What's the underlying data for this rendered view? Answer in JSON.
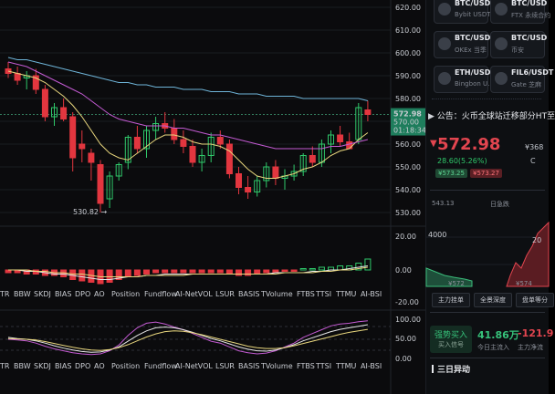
{
  "y_axis_prices": [
    "620.00",
    "610.00",
    "600.00",
    "590.00",
    "580.00",
    "570.00",
    "560.00",
    "550.00",
    "540.00",
    "530.00"
  ],
  "last_price_tag": "572.98",
  "second_price_tag": "570.00",
  "countdown": "01:18:34",
  "low_annotation": "530.82",
  "indicator_axis_1": [
    "20.00",
    "0.00",
    "-20.00"
  ],
  "indicator_axis_2": [
    "100.00",
    "50.00",
    "0.00"
  ],
  "indicator_tabs": [
    "TR",
    "BBW",
    "SKDJ",
    "BIAS",
    "DPO",
    "AO",
    "Position",
    "Fundflow",
    "AI-NetVOL",
    "LSUR",
    "BASIS",
    "TVolume",
    "FTBS",
    "TTSI",
    "TTMU",
    "AI-BSI"
  ],
  "pairs": [
    {
      "symbol": "BTC/USDT",
      "exchange": "Bybit USDT"
    },
    {
      "symbol": "BTC/USD",
      "exchange": "FTX 永续合约"
    },
    {
      "symbol": "BTC/USD",
      "exchange": "OKEx 当季"
    },
    {
      "symbol": "BTC/USD",
      "exchange": "币安"
    },
    {
      "symbol": "ETH/USDT",
      "exchange": "Bingbon U..."
    },
    {
      "symbol": "FIL6/USDT",
      "exchange": "Gate 芝麻"
    }
  ],
  "announcement": "公告：火币全球站迁移部分HT至",
  "price": {
    "value": "572.98",
    "change": "28.60(5.26%)",
    "bid": "¥573.25",
    "ask": "¥573.27",
    "side_value": "¥368",
    "side_label": "C"
  },
  "depth": {
    "left_value": "543.13",
    "mid_label": "日急跌",
    "left_axis": "4000",
    "right_axis": "20",
    "x_left": "¥572",
    "x_right": "¥574"
  },
  "chips": [
    "主力挂单",
    "全景深度",
    "盘单等分"
  ],
  "metrics": [
    {
      "label": "强势买入",
      "sub": "买入信号",
      "value": "41.86万",
      "value_sub": "今日主流入",
      "value_color": "#36c27a"
    },
    {
      "label": "",
      "sub": "",
      "value": "-121.9",
      "value_sub": "主力净流",
      "value_color": "#e2454f"
    }
  ],
  "section_title": "三日异动",
  "colors": {
    "up": "#2fc86a",
    "down": "#e2363f",
    "ma_yellow": "#e9d77e",
    "ma_pink": "#c45bd3",
    "ma_blue": "#6fb5d9",
    "price_tag": "#1e7d5c"
  }
}
